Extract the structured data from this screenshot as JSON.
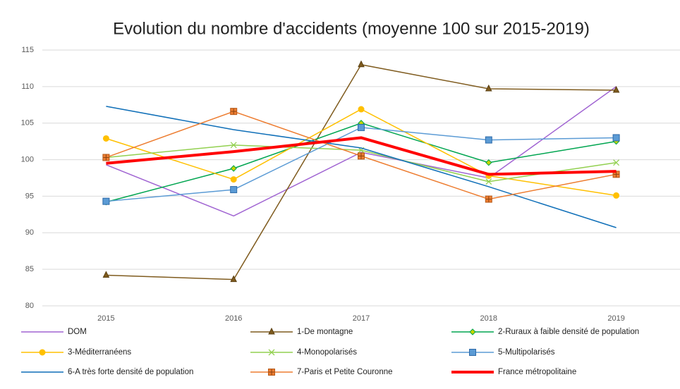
{
  "chart_data": {
    "type": "line",
    "title": "Evolution du nombre d'accidents (moyenne 100 sur 2015-2019)",
    "categories": [
      "2015",
      "2016",
      "2017",
      "2018",
      "2019"
    ],
    "ylim": [
      80,
      115
    ],
    "yticks": [
      80,
      85,
      90,
      95,
      100,
      105,
      110,
      115
    ],
    "grid": true,
    "legend": "bottom",
    "series": [
      {
        "name": "DOM",
        "color": "#a064d2",
        "marker": "none",
        "values": [
          99.3,
          92.3,
          101.0,
          97.5,
          110.0
        ]
      },
      {
        "name": "1-De montagne",
        "color": "#7f5b1e",
        "marker": "triangle",
        "values": [
          84.2,
          83.6,
          113.0,
          109.7,
          109.5
        ]
      },
      {
        "name": "2-Ruraux à faible densité de population",
        "color": "#00a550",
        "marker": "diamond",
        "values": [
          94.2,
          98.8,
          105.0,
          99.6,
          102.5
        ]
      },
      {
        "name": "3-Méditerranéens",
        "color": "#ffc000",
        "marker": "circle",
        "values": [
          102.9,
          97.3,
          106.9,
          97.8,
          95.1
        ]
      },
      {
        "name": "4-Monopolarisés",
        "color": "#92d050",
        "marker": "x",
        "values": [
          100.3,
          102.0,
          101.3,
          97.0,
          99.6
        ]
      },
      {
        "name": "5-Multipolarisés",
        "color": "#5b9bd5",
        "marker": "square",
        "values": [
          94.3,
          95.9,
          104.4,
          102.7,
          103.0
        ]
      },
      {
        "name": "6-A très forte densité de population",
        "color": "#0f6fb8",
        "marker": "none",
        "values": [
          107.3,
          104.1,
          101.6,
          96.3,
          90.7
        ]
      },
      {
        "name": "7-Paris et Petite Couronne",
        "color": "#ed7d31",
        "marker": "squareplus",
        "values": [
          100.3,
          106.6,
          100.5,
          94.6,
          98.0
        ]
      },
      {
        "name": "France métropolitaine",
        "color": "#ff0000",
        "marker": "none",
        "width": 4,
        "values": [
          99.5,
          101.1,
          103.0,
          98.0,
          98.4
        ]
      }
    ]
  }
}
